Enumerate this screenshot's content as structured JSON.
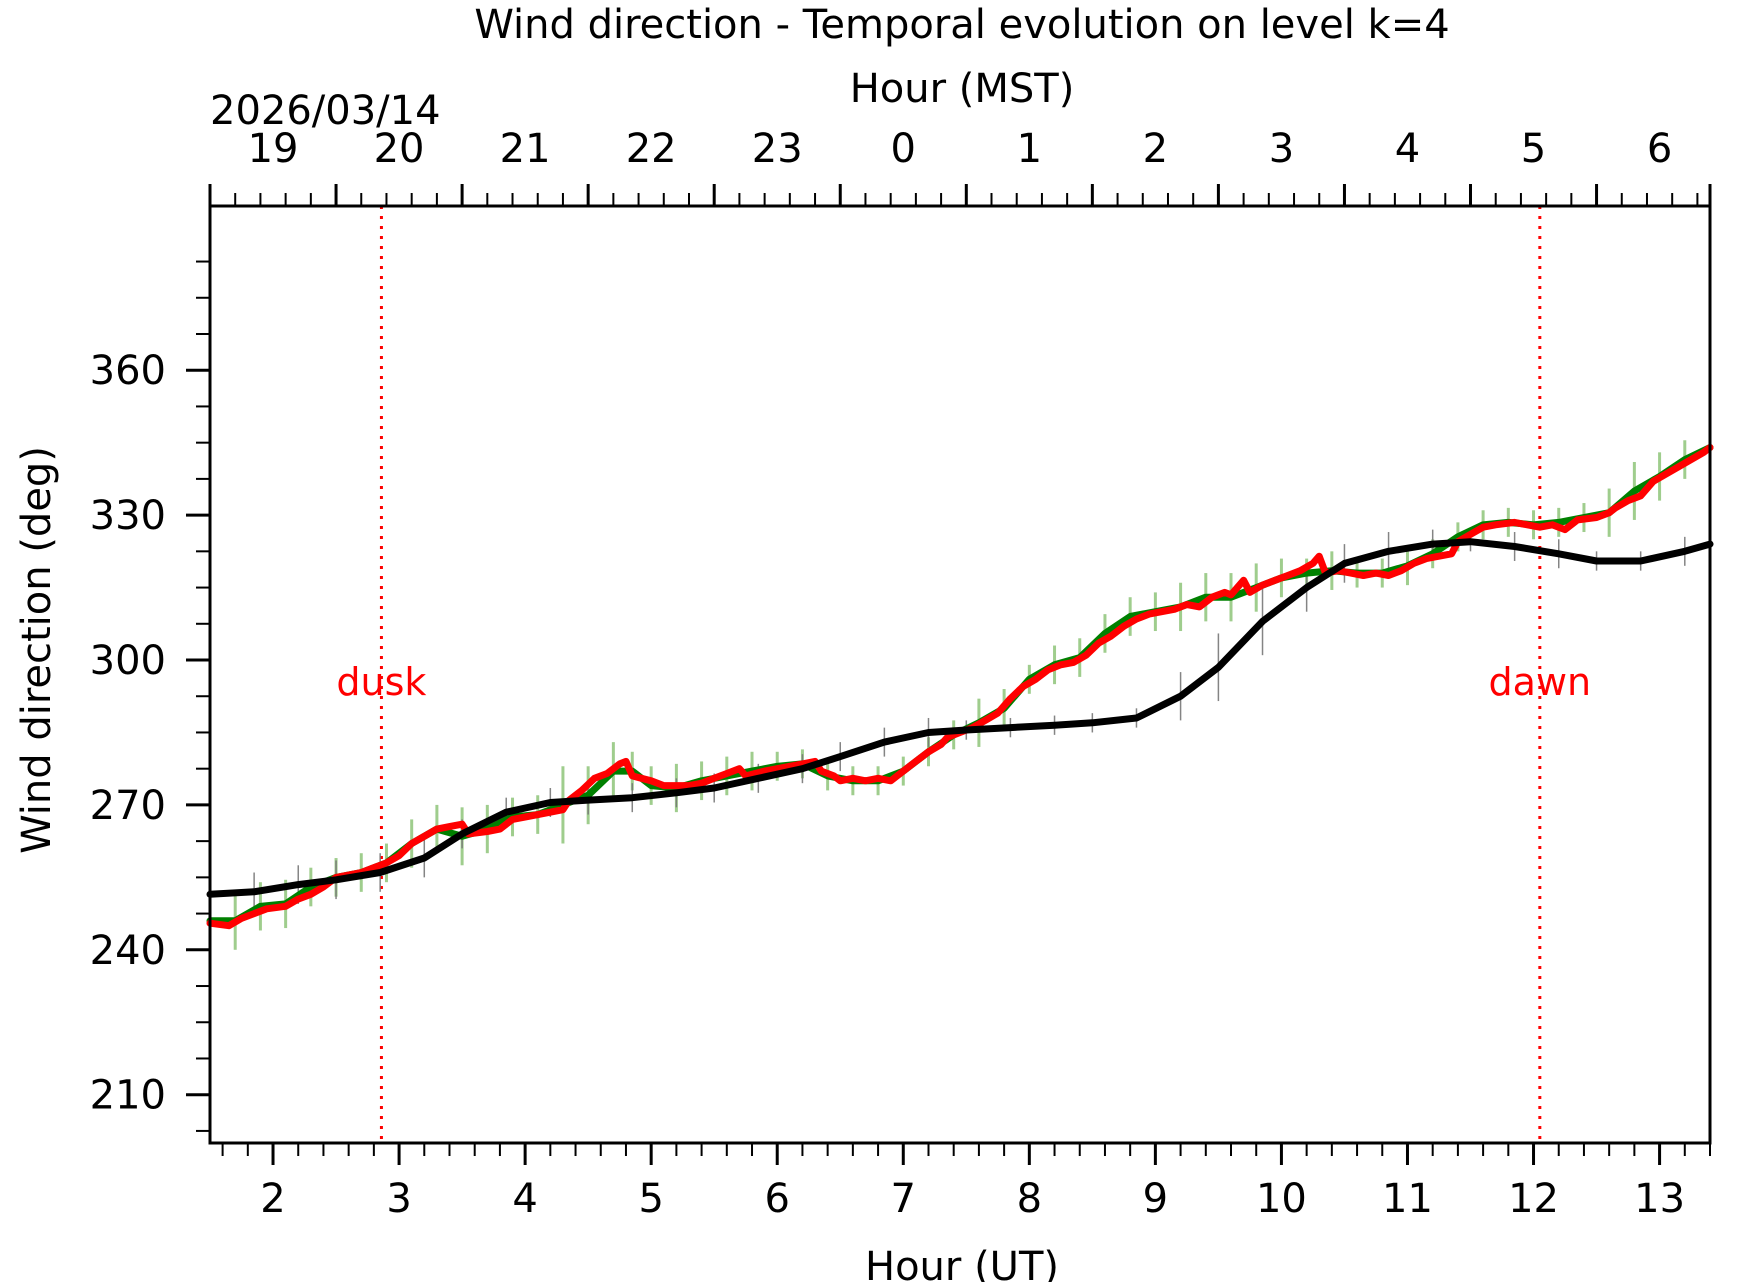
{
  "chart_data": {
    "type": "line",
    "title": "Wind direction - Temporal evolution on level k=4",
    "date_label": "2026/03/14",
    "xlabel": "Hour (UT)",
    "xlabel_top": "Hour (MST)",
    "ylabel": "Wind direction (deg)",
    "xlim": [
      1.5,
      13.4
    ],
    "ylim": [
      200,
      394
    ],
    "x_ticks": [
      2,
      3,
      4,
      5,
      6,
      7,
      8,
      9,
      10,
      11,
      12,
      13
    ],
    "x_tick_labels": [
      "2",
      "3",
      "4",
      "5",
      "6",
      "7",
      "8",
      "9",
      "10",
      "11",
      "12",
      "13"
    ],
    "top_ticks_ut": [
      1.5,
      2.5,
      3.5,
      4.5,
      5.5,
      6.5,
      7.5,
      8.5,
      9.5,
      10.5,
      11.5,
      12.5,
      13.5
    ],
    "top_tick_labels": [
      "19",
      "20",
      "21",
      "22",
      "23",
      "0",
      "1",
      "2",
      "3",
      "4",
      "5",
      "6",
      ""
    ],
    "y_ticks": [
      210,
      240,
      270,
      300,
      330,
      360
    ],
    "y_tick_labels": [
      "210",
      "240",
      "270",
      "300",
      "330",
      "360"
    ],
    "grid": false,
    "annotations": [
      {
        "text": "dusk",
        "x": 2.86,
        "color": "#ff0000"
      },
      {
        "text": "dawn",
        "x": 12.05,
        "color": "#ff0000"
      }
    ],
    "series": [
      {
        "color": "#008000",
        "values_xy": [
          [
            1.5,
            246
          ],
          [
            1.7,
            246
          ],
          [
            1.9,
            249
          ],
          [
            2.1,
            249.5
          ],
          [
            2.3,
            253
          ],
          [
            2.5,
            255
          ],
          [
            2.7,
            256
          ],
          [
            2.9,
            258
          ],
          [
            3.1,
            262
          ],
          [
            3.3,
            265
          ],
          [
            3.5,
            263.5
          ],
          [
            3.7,
            265
          ],
          [
            3.9,
            267.5
          ],
          [
            4.1,
            268
          ],
          [
            4.3,
            270
          ],
          [
            4.5,
            272
          ],
          [
            4.7,
            277
          ],
          [
            4.85,
            277
          ],
          [
            5.0,
            274
          ],
          [
            5.2,
            273.5
          ],
          [
            5.4,
            275
          ],
          [
            5.6,
            276
          ],
          [
            5.8,
            277
          ],
          [
            6.0,
            278
          ],
          [
            6.2,
            278.5
          ],
          [
            6.4,
            276
          ],
          [
            6.6,
            275
          ],
          [
            6.8,
            275
          ],
          [
            7.0,
            277
          ],
          [
            7.2,
            281
          ],
          [
            7.4,
            284.5
          ],
          [
            7.6,
            287
          ],
          [
            7.8,
            290
          ],
          [
            8.0,
            296
          ],
          [
            8.2,
            299
          ],
          [
            8.4,
            300.5
          ],
          [
            8.6,
            305.5
          ],
          [
            8.8,
            309
          ],
          [
            9.0,
            310
          ],
          [
            9.2,
            311
          ],
          [
            9.4,
            313
          ],
          [
            9.6,
            313
          ],
          [
            9.8,
            315
          ],
          [
            10.0,
            317
          ],
          [
            10.2,
            318
          ],
          [
            10.4,
            318.5
          ],
          [
            10.6,
            318
          ],
          [
            10.8,
            318
          ],
          [
            11.0,
            319.5
          ],
          [
            11.2,
            322
          ],
          [
            11.4,
            325.5
          ],
          [
            11.6,
            328
          ],
          [
            11.8,
            328.5
          ],
          [
            12.0,
            328
          ],
          [
            12.2,
            328.5
          ],
          [
            12.4,
            329.5
          ],
          [
            12.6,
            330.5
          ],
          [
            12.8,
            335
          ],
          [
            13.0,
            338
          ],
          [
            13.2,
            341.5
          ],
          [
            13.4,
            344
          ]
        ],
        "errors": [
          0,
          6,
          5,
          5,
          4,
          4,
          4,
          4,
          5,
          5,
          6,
          5,
          4,
          4,
          8,
          6,
          6,
          4,
          4,
          5,
          4,
          4,
          4,
          3,
          3,
          3,
          3,
          3,
          3,
          3,
          3,
          5,
          4,
          3,
          4,
          4,
          4,
          4,
          4,
          5,
          5,
          5,
          5,
          4,
          3,
          4,
          3,
          3,
          4,
          3,
          3,
          3,
          3,
          3,
          3,
          3,
          5,
          6,
          5,
          4,
          4
        ]
      },
      {
        "color": "#ff0000",
        "values_xy": [
          [
            1.5,
            245.5
          ],
          [
            1.65,
            245
          ],
          [
            1.75,
            246.5
          ],
          [
            1.85,
            247.5
          ],
          [
            1.95,
            248.5
          ],
          [
            2.1,
            249
          ],
          [
            2.2,
            250.5
          ],
          [
            2.3,
            251.5
          ],
          [
            2.4,
            253
          ],
          [
            2.5,
            255
          ],
          [
            2.7,
            256
          ],
          [
            2.8,
            257
          ],
          [
            2.9,
            258
          ],
          [
            3.0,
            259.5
          ],
          [
            3.1,
            262
          ],
          [
            3.2,
            263.5
          ],
          [
            3.3,
            265
          ],
          [
            3.4,
            265.5
          ],
          [
            3.5,
            266
          ],
          [
            3.55,
            264
          ],
          [
            3.7,
            264.5
          ],
          [
            3.8,
            265
          ],
          [
            3.9,
            267
          ],
          [
            4.0,
            267.5
          ],
          [
            4.2,
            268.5
          ],
          [
            4.3,
            269
          ],
          [
            4.35,
            271
          ],
          [
            4.45,
            273
          ],
          [
            4.55,
            275.5
          ],
          [
            4.65,
            276.5
          ],
          [
            4.75,
            278.5
          ],
          [
            4.8,
            279
          ],
          [
            4.85,
            276
          ],
          [
            5.0,
            275
          ],
          [
            5.1,
            274
          ],
          [
            5.3,
            274
          ],
          [
            5.4,
            274.5
          ],
          [
            5.5,
            275.5
          ],
          [
            5.6,
            276.5
          ],
          [
            5.7,
            277.5
          ],
          [
            5.75,
            276
          ],
          [
            5.9,
            277
          ],
          [
            6.0,
            277.5
          ],
          [
            6.1,
            278
          ],
          [
            6.2,
            278.5
          ],
          [
            6.3,
            279
          ],
          [
            6.35,
            277
          ],
          [
            6.45,
            276
          ],
          [
            6.5,
            275
          ],
          [
            6.6,
            275.5
          ],
          [
            6.7,
            275
          ],
          [
            6.8,
            275.5
          ],
          [
            6.9,
            275
          ],
          [
            7.0,
            277
          ],
          [
            7.1,
            279
          ],
          [
            7.2,
            281
          ],
          [
            7.3,
            282.5
          ],
          [
            7.35,
            284
          ],
          [
            7.45,
            285
          ],
          [
            7.55,
            286
          ],
          [
            7.65,
            287.5
          ],
          [
            7.75,
            289
          ],
          [
            7.85,
            292
          ],
          [
            7.95,
            294.5
          ],
          [
            8.05,
            296
          ],
          [
            8.15,
            298
          ],
          [
            8.25,
            299
          ],
          [
            8.35,
            299.5
          ],
          [
            8.45,
            301
          ],
          [
            8.55,
            303.5
          ],
          [
            8.65,
            305
          ],
          [
            8.75,
            307
          ],
          [
            8.85,
            308.5
          ],
          [
            8.95,
            309.5
          ],
          [
            9.05,
            310
          ],
          [
            9.15,
            310.5
          ],
          [
            9.25,
            311.5
          ],
          [
            9.35,
            311
          ],
          [
            9.45,
            313
          ],
          [
            9.55,
            314
          ],
          [
            9.6,
            313.5
          ],
          [
            9.65,
            315
          ],
          [
            9.7,
            316.5
          ],
          [
            9.75,
            314
          ],
          [
            9.85,
            315.5
          ],
          [
            9.95,
            316.5
          ],
          [
            10.05,
            317.5
          ],
          [
            10.15,
            318.5
          ],
          [
            10.25,
            320
          ],
          [
            10.3,
            321.5
          ],
          [
            10.35,
            318
          ],
          [
            10.45,
            318.5
          ],
          [
            10.55,
            318
          ],
          [
            10.65,
            317.5
          ],
          [
            10.75,
            318
          ],
          [
            10.85,
            317.5
          ],
          [
            10.95,
            318.5
          ],
          [
            11.05,
            320
          ],
          [
            11.15,
            321
          ],
          [
            11.25,
            321.5
          ],
          [
            11.35,
            322
          ],
          [
            11.4,
            324.5
          ],
          [
            11.5,
            326
          ],
          [
            11.6,
            327.5
          ],
          [
            11.7,
            328
          ],
          [
            11.85,
            328.5
          ],
          [
            11.95,
            328
          ],
          [
            12.05,
            327.5
          ],
          [
            12.15,
            328
          ],
          [
            12.25,
            327
          ],
          [
            12.35,
            329
          ],
          [
            12.5,
            329.5
          ],
          [
            12.6,
            330.5
          ],
          [
            12.65,
            331.5
          ],
          [
            12.75,
            333
          ],
          [
            12.85,
            334
          ],
          [
            12.95,
            337
          ],
          [
            13.05,
            338.5
          ],
          [
            13.15,
            340
          ],
          [
            13.25,
            341.5
          ],
          [
            13.35,
            343
          ],
          [
            13.4,
            344
          ]
        ]
      },
      {
        "color": "#000000",
        "values_xy": [
          [
            1.5,
            251.5
          ],
          [
            1.85,
            252
          ],
          [
            2.2,
            253.5
          ],
          [
            2.5,
            254.5
          ],
          [
            2.85,
            256
          ],
          [
            3.2,
            259
          ],
          [
            3.5,
            264
          ],
          [
            3.85,
            268.5
          ],
          [
            4.2,
            270.5
          ],
          [
            4.5,
            271
          ],
          [
            4.85,
            271.5
          ],
          [
            5.2,
            272.5
          ],
          [
            5.5,
            273.5
          ],
          [
            5.85,
            275.5
          ],
          [
            6.2,
            277.5
          ],
          [
            6.5,
            280
          ],
          [
            6.85,
            283
          ],
          [
            7.2,
            285
          ],
          [
            7.5,
            285.5
          ],
          [
            7.85,
            286
          ],
          [
            8.2,
            286.5
          ],
          [
            8.5,
            287
          ],
          [
            8.85,
            288
          ],
          [
            9.2,
            292.5
          ],
          [
            9.5,
            298.5
          ],
          [
            9.85,
            308
          ],
          [
            10.2,
            315
          ],
          [
            10.5,
            320
          ],
          [
            10.85,
            322.5
          ],
          [
            11.2,
            324
          ],
          [
            11.5,
            324.5
          ],
          [
            11.85,
            323.5
          ],
          [
            12.2,
            322
          ],
          [
            12.5,
            320.5
          ],
          [
            12.85,
            320.5
          ],
          [
            13.2,
            322.5
          ],
          [
            13.4,
            324
          ]
        ],
        "errors": [
          0,
          4,
          4,
          4,
          4,
          4,
          3,
          3,
          3,
          3,
          3,
          3,
          3,
          3,
          3,
          3,
          3,
          3,
          2,
          2,
          2,
          2,
          2,
          5,
          7,
          7,
          5,
          4,
          4,
          3,
          2,
          3,
          3,
          2,
          2,
          3,
          0
        ]
      }
    ]
  }
}
